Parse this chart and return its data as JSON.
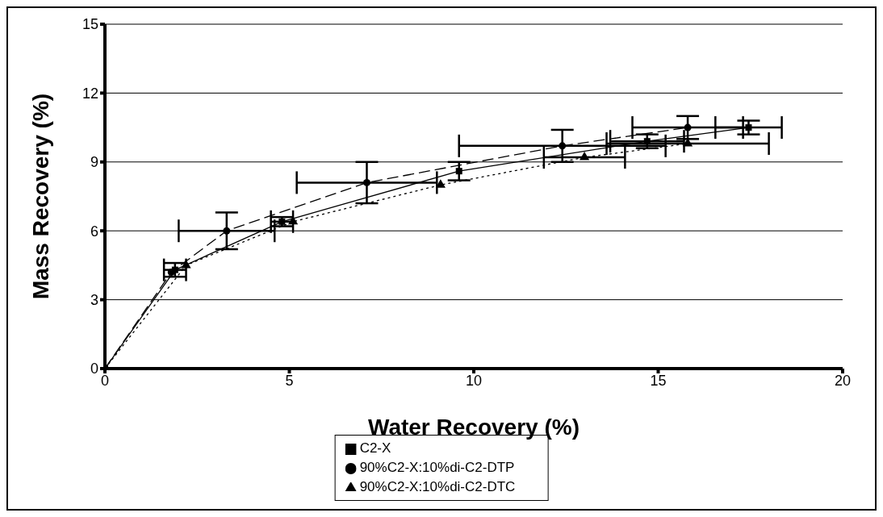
{
  "chart_data": {
    "type": "scatter",
    "xlabel": "Water Recovery (%)",
    "ylabel": "Mass Recovery (%)",
    "xlim": [
      0,
      20
    ],
    "xticks": [
      0,
      5,
      10,
      15,
      20
    ],
    "ylim": [
      0,
      15
    ],
    "yticks": [
      0,
      3,
      6,
      9,
      12,
      15
    ],
    "grid": "y",
    "legend": "bottom",
    "series": [
      {
        "name": "C2-X",
        "type": "line",
        "color": "#000000",
        "marker": "square",
        "line_style": "solid",
        "x": [
          0,
          1.9,
          4.8,
          9.6,
          14.7,
          17.45
        ],
        "values": [
          0,
          4.3,
          6.4,
          8.6,
          9.9,
          10.5
        ],
        "errors": [
          null,
          0.3,
          0.2,
          0.4,
          0.3,
          0.3
        ],
        "xerrors": [
          null,
          0.3,
          0.3,
          null,
          1.0,
          0.9
        ]
      },
      {
        "name": "90%C2-X:10%di-C2-DTP",
        "type": "line",
        "color": "#000000",
        "marker": "circle",
        "line_style": "dashed",
        "x": [
          0,
          1.8,
          3.3,
          7.1,
          12.4,
          15.8
        ],
        "values": [
          0,
          4.2,
          6.0,
          8.1,
          9.7,
          10.5
        ],
        "errors": [
          null,
          null,
          0.8,
          0.9,
          0.7,
          0.5
        ],
        "xerrors": [
          null,
          null,
          1.3,
          1.9,
          2.8,
          1.5
        ]
      },
      {
        "name": "90%C2-X:10%di-C2-DTC",
        "type": "line",
        "color": "#000000",
        "marker": "triangle",
        "line_style": "dotted",
        "x": [
          0,
          2.2,
          5.1,
          9.1,
          13.0,
          15.8
        ],
        "values": [
          0,
          4.5,
          6.4,
          8.0,
          9.2,
          9.8
        ],
        "errors": [
          null,
          null,
          null,
          null,
          null,
          null
        ],
        "xerrors": [
          null,
          null,
          null,
          null,
          1.1,
          2.2
        ]
      }
    ]
  }
}
